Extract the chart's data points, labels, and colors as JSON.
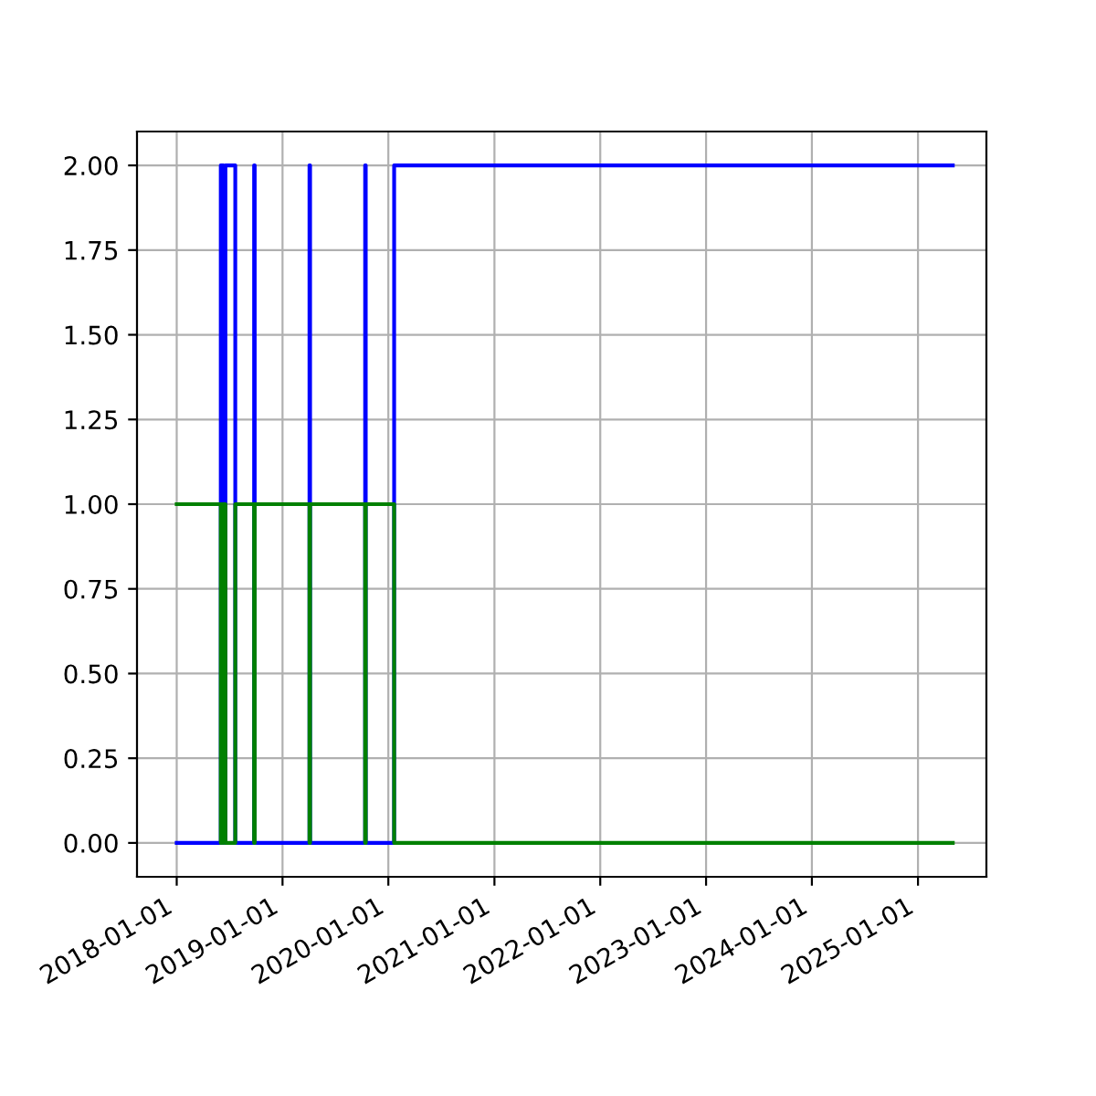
{
  "chart_data": {
    "type": "line",
    "series": [
      {
        "color": "#0000ff",
        "x": [
          "2018-01-01",
          "2018-06-02",
          "2018-06-02",
          "2018-06-04",
          "2018-06-04",
          "2018-06-09",
          "2018-06-09",
          "2018-06-11",
          "2018-06-11",
          "2018-06-18",
          "2018-06-18",
          "2018-07-22",
          "2018-07-22",
          "2018-09-25",
          "2018-09-25",
          "2018-09-27",
          "2018-09-27",
          "2019-04-04",
          "2019-04-04",
          "2019-04-06",
          "2019-04-06",
          "2019-10-13",
          "2019-10-13",
          "2019-10-15",
          "2019-10-15",
          "2020-01-21",
          "2020-01-21",
          "2025-05-01"
        ],
        "values": [
          0,
          0,
          2,
          2,
          0,
          0,
          2,
          2,
          0,
          0,
          2,
          2,
          0,
          0,
          2,
          2,
          0,
          0,
          2,
          2,
          0,
          0,
          2,
          2,
          0,
          0,
          2,
          2
        ]
      },
      {
        "color": "#008000",
        "x": [
          "2018-01-01",
          "2018-06-02",
          "2018-06-02",
          "2018-06-04",
          "2018-06-04",
          "2018-06-09",
          "2018-06-09",
          "2018-06-11",
          "2018-06-11",
          "2018-06-18",
          "2018-06-18",
          "2018-07-22",
          "2018-07-22",
          "2018-09-25",
          "2018-09-25",
          "2018-09-27",
          "2018-09-27",
          "2019-04-04",
          "2019-04-04",
          "2019-04-06",
          "2019-04-06",
          "2019-10-13",
          "2019-10-13",
          "2019-10-15",
          "2019-10-15",
          "2020-01-21",
          "2020-01-21",
          "2025-05-01"
        ],
        "values": [
          1,
          1,
          0,
          0,
          1,
          1,
          0,
          0,
          1,
          1,
          0,
          0,
          1,
          1,
          0,
          0,
          1,
          1,
          0,
          0,
          1,
          1,
          0,
          0,
          1,
          1,
          0,
          0
        ]
      }
    ],
    "xlim": [
      "2017-08-17",
      "2025-08-25"
    ],
    "xticks": [
      "2018-01-01",
      "2019-01-01",
      "2020-01-01",
      "2021-01-01",
      "2022-01-01",
      "2023-01-01",
      "2024-01-01",
      "2025-01-01"
    ],
    "ylim": [
      -0.1,
      2.1
    ],
    "yticks": [
      {
        "value": 0,
        "label": "0.00"
      },
      {
        "value": 0.25,
        "label": "0.25"
      },
      {
        "value": 0.5,
        "label": "0.50"
      },
      {
        "value": 0.75,
        "label": "0.75"
      },
      {
        "value": 1,
        "label": "1.00"
      },
      {
        "value": 1.25,
        "label": "1.25"
      },
      {
        "value": 1.5,
        "label": "1.50"
      },
      {
        "value": 1.75,
        "label": "1.75"
      },
      {
        "value": 2,
        "label": "2.00"
      }
    ],
    "grid": true
  }
}
